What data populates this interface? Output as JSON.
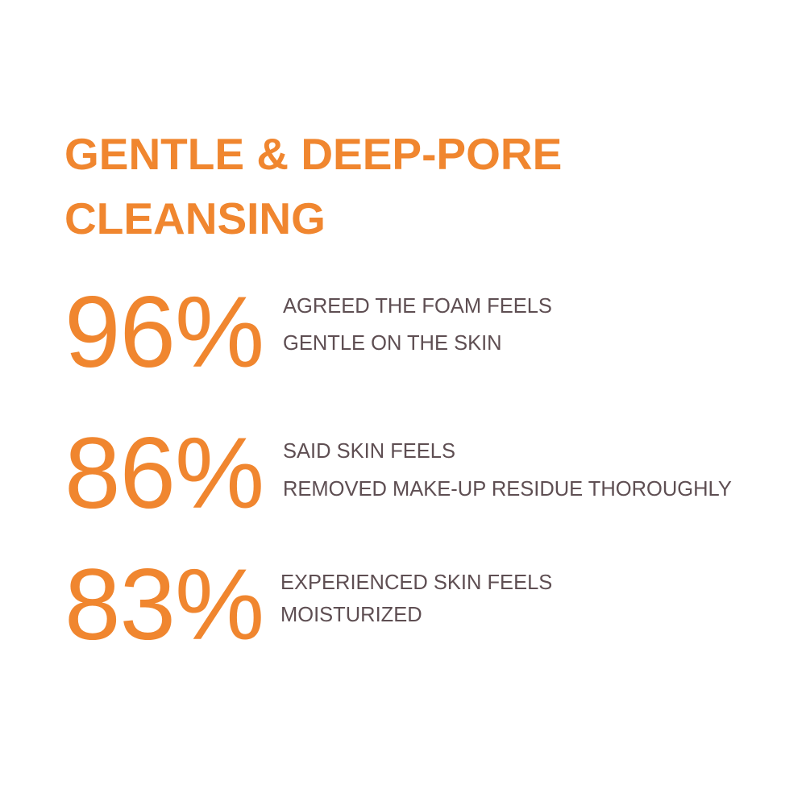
{
  "title": {
    "line1": "GENTLE & DEEP-PORE",
    "line2": "CLEANSING"
  },
  "colors": {
    "accent": "#f0862f",
    "text": "#5e4e52",
    "background": "#ffffff"
  },
  "stats": [
    {
      "value": "96%",
      "lines": [
        "AGREED THE FOAM FEELS",
        "GENTLE ON THE SKIN"
      ]
    },
    {
      "value": "86%",
      "lines": [
        "SAID SKIN FEELS",
        "REMOVED MAKE-UP RESIDUE THOROUGHLY"
      ]
    },
    {
      "value": "83%",
      "lines": [
        "EXPERIENCED SKIN FEELS",
        "MOISTURIZED"
      ]
    }
  ]
}
